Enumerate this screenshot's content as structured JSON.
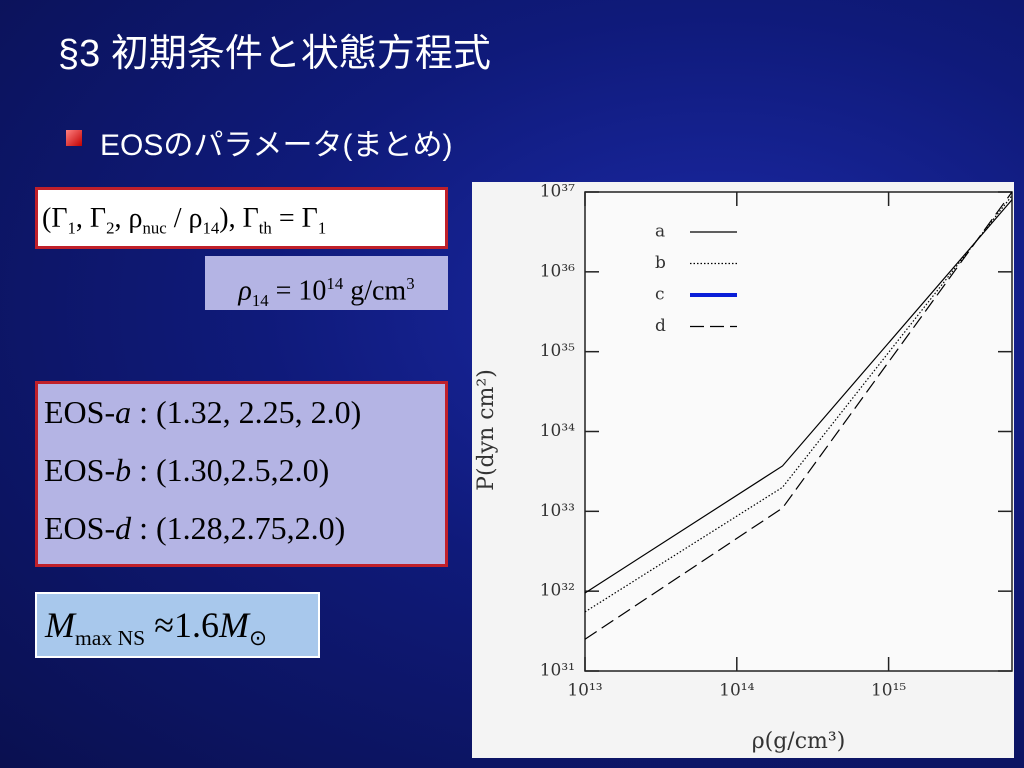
{
  "header": {
    "title": "§3 初期条件と状態方程式"
  },
  "bullet": "EOSのパラメータ(まとめ)",
  "box1": [
    "(Γ",
    "1",
    ", Γ",
    "2",
    ", ρ",
    "nuc",
    " / ρ",
    "14",
    "),   Γ",
    "th",
    " = Γ",
    "1"
  ],
  "box2": {
    "rho": "ρ",
    "rho_sub": "14",
    "eq": " = 10",
    "exp": "14",
    "unit": "  g/cm",
    "unit_exp": "3"
  },
  "eos": [
    {
      "prefix": "EOS-",
      "name": "a",
      "params": " :  (1.32, 2.25, 2.0)"
    },
    {
      "prefix": "EOS-",
      "name": "b",
      "params": " :  (1.30,2.5,2.0)"
    },
    {
      "prefix": "EOS-",
      "name": "d",
      "params": " :  (1.28,2.75,2.0)"
    }
  ],
  "mass": {
    "m": "M",
    "sub": "max NS",
    "approx": " ≈1.6",
    "m2": "M",
    "sun": "⊙"
  },
  "chart_data": {
    "type": "line",
    "x_label": "ρ(g/cm³)",
    "y_label": "P(dyn cm²)",
    "xlog": true,
    "ylog": true,
    "x": [
      10000000000000.0,
      200000000000000.0,
      6500000000000000.0
    ],
    "xlim": [
      10000000000000.0,
      6500000000000000.0
    ],
    "ylim": [
      1e+31,
      1e+37
    ],
    "xticks": [
      {
        "value": 10000000000000.0,
        "label": "10¹³"
      },
      {
        "value": 100000000000000.0,
        "label": "10¹⁴"
      },
      {
        "value": 1000000000000000.0,
        "label": "10¹⁵"
      }
    ],
    "yticks": [
      {
        "value": 1e+31,
        "label": "10³¹"
      },
      {
        "value": 1e+32,
        "label": "10³²"
      },
      {
        "value": 1e+33,
        "label": "10³³"
      },
      {
        "value": 1e+34,
        "label": "10³⁴"
      },
      {
        "value": 1e+35,
        "label": "10³⁵"
      },
      {
        "value": 1e+36,
        "label": "10³⁶"
      },
      {
        "value": 1e+37,
        "label": "10³⁷"
      }
    ],
    "legend": "upper left",
    "series": [
      {
        "name": "a",
        "color": "#000000",
        "style": "solid",
        "values": [
          9.5e+31,
          3.7e+33,
          8e+36
        ]
      },
      {
        "name": "b",
        "color": "#000000",
        "style": "dotted",
        "values": [
          5.5e+31,
          2e+33,
          9e+36
        ]
      },
      {
        "name": "c",
        "color": "#0a1ed8",
        "style": "thick",
        "values": [
          null,
          null,
          null
        ]
      },
      {
        "name": "d",
        "color": "#000000",
        "style": "dashed",
        "values": [
          2.5e+31,
          1.1e+33,
          1e+37
        ]
      }
    ]
  }
}
